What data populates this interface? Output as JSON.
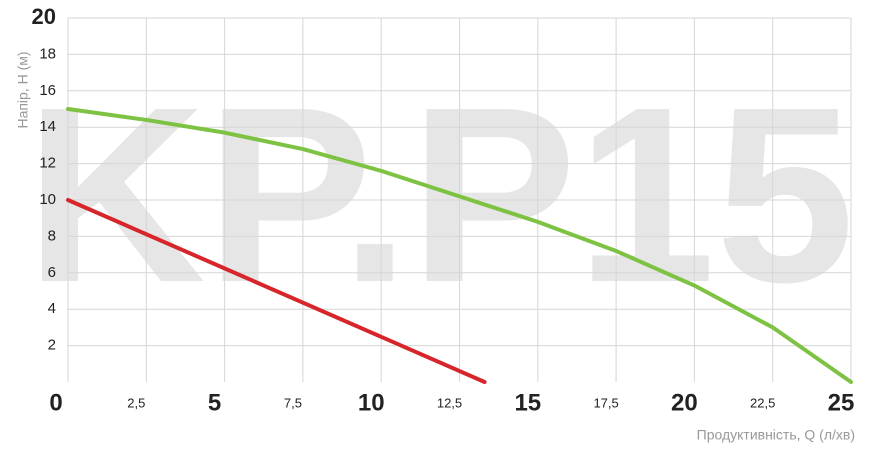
{
  "chart_data": {
    "type": "line",
    "watermark": "KP.P15",
    "xlabel": "Продуктивність, Q (л/хв)",
    "ylabel": "Напір, Н (м)",
    "xlim": [
      0,
      25
    ],
    "ylim": [
      0,
      20
    ],
    "xticks": [
      0,
      {
        "value": 2.5,
        "label": "2,5"
      },
      5,
      {
        "value": 7.5,
        "label": "7,5"
      },
      10,
      {
        "value": 12.5,
        "label": "12,5"
      },
      15,
      {
        "value": 17.5,
        "label": "17,5"
      },
      20,
      {
        "value": 22.5,
        "label": "22,5"
      },
      25
    ],
    "yticks": [
      2,
      4,
      6,
      8,
      10,
      12,
      14,
      16,
      18,
      20
    ],
    "grid": true,
    "series": [
      {
        "color": "#7dc242",
        "x": [
          0,
          2.5,
          5,
          7.5,
          10,
          12.5,
          15,
          17.5,
          20,
          22.5,
          25
        ],
        "values": [
          15,
          14.4,
          13.7,
          12.8,
          11.6,
          10.2,
          8.8,
          7.2,
          5.3,
          3.0,
          0
        ]
      },
      {
        "color": "#d7262b",
        "x": [
          0,
          13.3
        ],
        "values": [
          10,
          0
        ]
      }
    ]
  }
}
